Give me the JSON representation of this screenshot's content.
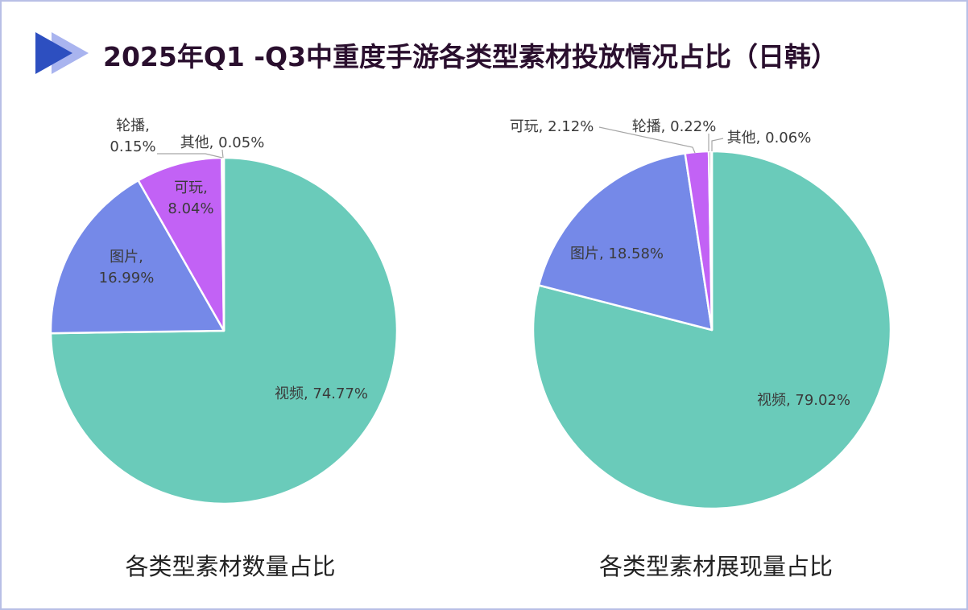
{
  "title": "2025年Q1 -Q3中重度手游各类型素材投放情况占比（日韩）",
  "colors": {
    "video": "#6acbba",
    "image": "#7589e8",
    "playable": "#c262f5",
    "carousel": "#7a7a7a",
    "other": "#5aa0e0",
    "frame": "#b8bfe6",
    "title": "#2a0f2e",
    "icon_dark": "#2d4fc0",
    "icon_light": "#a9b4ef"
  },
  "chart_data": [
    {
      "type": "pie",
      "caption": "各类型素材数量占比",
      "slices": [
        {
          "name": "视频",
          "value": 74.77,
          "color": "#6acbba",
          "label": [
            "视频, 74.77%"
          ]
        },
        {
          "name": "图片",
          "value": 16.99,
          "color": "#7589e8",
          "label": [
            "图片,",
            "16.99%"
          ]
        },
        {
          "name": "可玩",
          "value": 8.04,
          "color": "#c262f5",
          "label": [
            "可玩,",
            "8.04%"
          ]
        },
        {
          "name": "轮播",
          "value": 0.15,
          "color": "#7a7a7a",
          "label": [
            "轮播,",
            "0.15%"
          ]
        },
        {
          "name": "其他",
          "value": 0.05,
          "color": "#5aa0e0",
          "label": [
            "其他, 0.05%"
          ]
        }
      ]
    },
    {
      "type": "pie",
      "caption": "各类型素材展现量占比",
      "slices": [
        {
          "name": "视频",
          "value": 79.02,
          "color": "#6acbba",
          "label": [
            "视频, 79.02%"
          ]
        },
        {
          "name": "图片",
          "value": 18.58,
          "color": "#7589e8",
          "label": [
            "图片, 18.58%"
          ]
        },
        {
          "name": "可玩",
          "value": 2.12,
          "color": "#c262f5",
          "label": [
            "可玩, 2.12%"
          ]
        },
        {
          "name": "轮播",
          "value": 0.22,
          "color": "#7a7a7a",
          "label": [
            "轮播, 0.22%"
          ]
        },
        {
          "name": "其他",
          "value": 0.06,
          "color": "#5aa0e0",
          "label": [
            "其他, 0.06%"
          ]
        }
      ]
    }
  ]
}
